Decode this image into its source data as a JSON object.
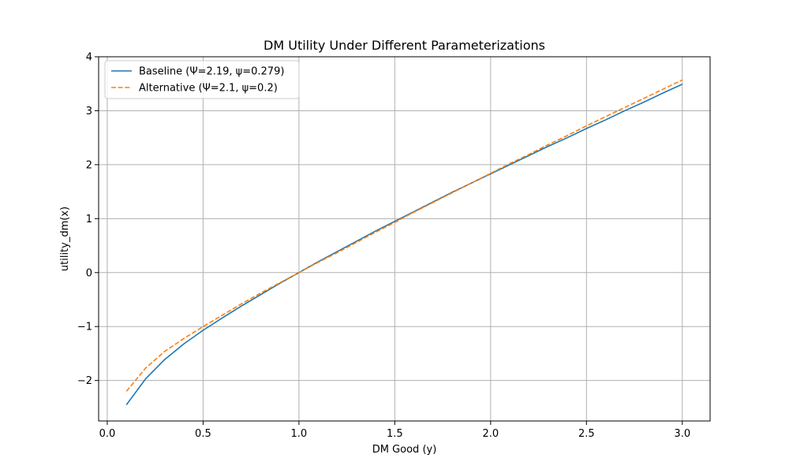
{
  "chart_data": {
    "type": "line",
    "title": "DM Utility Under Different Parameterizations",
    "xlabel": "DM Good (y)",
    "ylabel": "utility_dm(x)",
    "xlim": [
      -0.045,
      3.145
    ],
    "ylim": [
      -2.75,
      4.0
    ],
    "xticks": [
      0.0,
      0.5,
      1.0,
      1.5,
      2.0,
      2.5,
      3.0
    ],
    "xtick_labels": [
      "0.0",
      "0.5",
      "1.0",
      "1.5",
      "2.0",
      "2.5",
      "3.0"
    ],
    "yticks": [
      -2,
      -1,
      0,
      1,
      2,
      3,
      4
    ],
    "ytick_labels": [
      "−2",
      "−1",
      "0",
      "1",
      "2",
      "3",
      "4"
    ],
    "grid": true,
    "legend_position": "top-left",
    "series": [
      {
        "name": "Baseline (Ψ=2.19, ψ=0.279)",
        "color": "#1f77b4",
        "style": "solid",
        "x": [
          0.1,
          0.2,
          0.3,
          0.4,
          0.5,
          0.6,
          0.7,
          0.8,
          0.9,
          1.0,
          1.1,
          1.2,
          1.3,
          1.4,
          1.5,
          1.6,
          1.7,
          1.8,
          1.9,
          2.0,
          2.1,
          2.2,
          2.3,
          2.4,
          2.5,
          2.6,
          2.7,
          2.8,
          2.9,
          3.0
        ],
        "y": [
          -2.45,
          -1.97,
          -1.61,
          -1.32,
          -1.07,
          -0.84,
          -0.62,
          -0.41,
          -0.2,
          0.0,
          0.2,
          0.39,
          0.58,
          0.77,
          0.95,
          1.13,
          1.31,
          1.49,
          1.66,
          1.83,
          2.0,
          2.17,
          2.34,
          2.5,
          2.67,
          2.83,
          3.0,
          3.16,
          3.33,
          3.49
        ]
      },
      {
        "name": "Alternative (Ψ=2.1, ψ=0.2)",
        "color": "#ff7f0e",
        "style": "dashed",
        "x": [
          0.1,
          0.2,
          0.3,
          0.4,
          0.5,
          0.6,
          0.7,
          0.8,
          0.9,
          1.0,
          1.1,
          1.2,
          1.3,
          1.4,
          1.5,
          1.6,
          1.7,
          1.8,
          1.9,
          2.0,
          2.1,
          2.2,
          2.3,
          2.4,
          2.5,
          2.6,
          2.7,
          2.8,
          2.9,
          3.0
        ],
        "y": [
          -2.2,
          -1.77,
          -1.46,
          -1.22,
          -1.0,
          -0.79,
          -0.58,
          -0.38,
          -0.19,
          0.0,
          0.19,
          0.37,
          0.56,
          0.75,
          0.93,
          1.12,
          1.3,
          1.48,
          1.66,
          1.84,
          2.02,
          2.19,
          2.37,
          2.54,
          2.72,
          2.89,
          3.06,
          3.23,
          3.4,
          3.57
        ]
      }
    ]
  }
}
